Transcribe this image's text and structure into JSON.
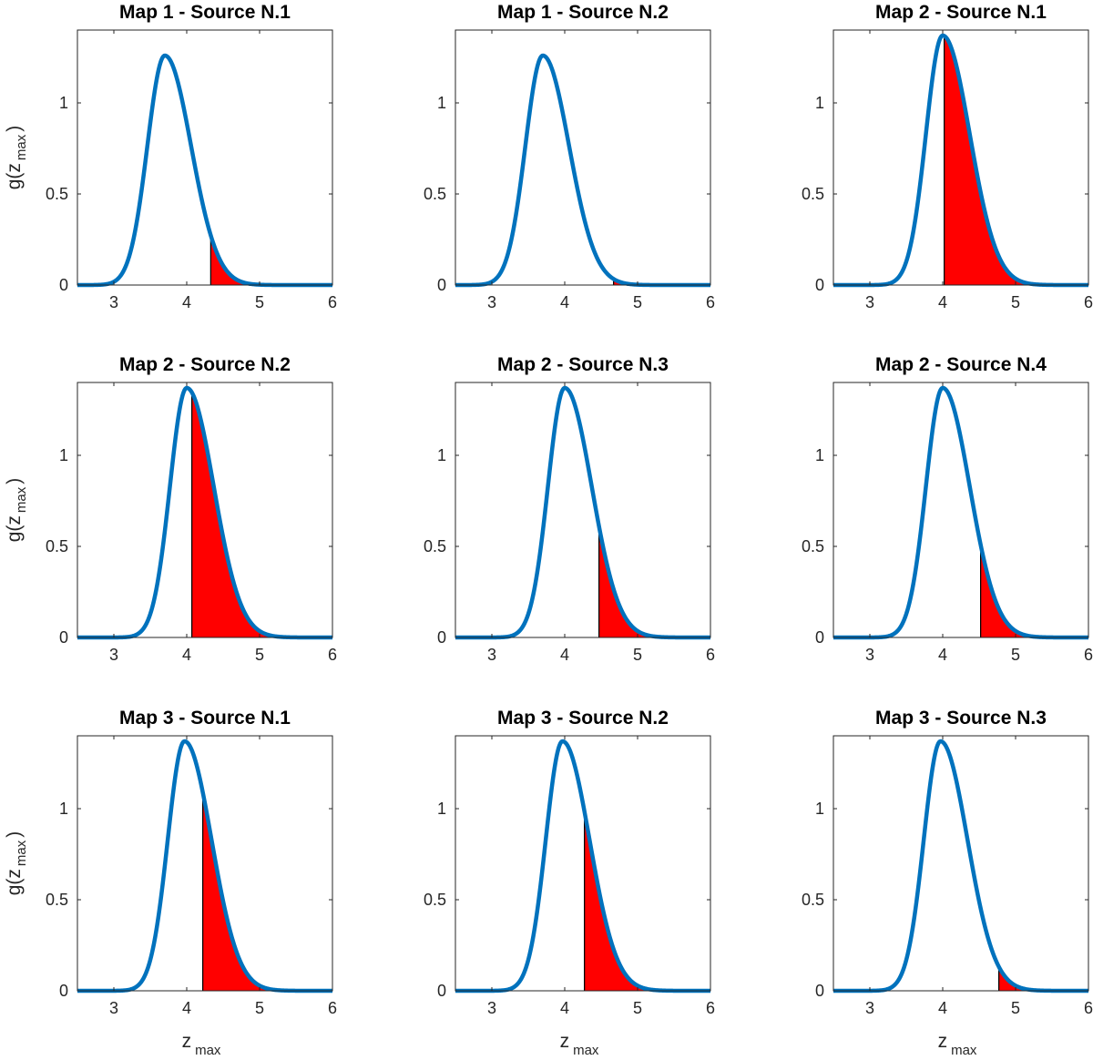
{
  "figure": {
    "colors": {
      "curve": "#0072BD",
      "fill": "#FF0000",
      "axis": "#262626",
      "title": "#000000"
    }
  },
  "chart_data": [
    {
      "type": "area",
      "title": "Map 1 - Source N.1",
      "xlim": [
        2.5,
        6
      ],
      "ylim": [
        0,
        1.4
      ],
      "xticks": [
        3,
        4,
        5,
        6
      ],
      "yticks": [
        0,
        0.5,
        1
      ],
      "xtick_labels": [
        "3",
        "4",
        "5",
        "6"
      ],
      "ytick_labels": [
        "0",
        "0.5",
        "1"
      ],
      "curve": {
        "peak_x": 3.7,
        "peak_y": 1.26,
        "sigma_left": 0.24,
        "sigma_right": 0.36
      },
      "shaded_from": 4.33,
      "ylabel": "g(z max)",
      "ylabel_main": "g(z",
      "ylabel_sub": "max",
      "ylabel_close": ")",
      "xlabel": "",
      "xlabel_main": "",
      "xlabel_sub": ""
    },
    {
      "type": "area",
      "title": "Map 1 - Source N.2",
      "xlim": [
        2.5,
        6
      ],
      "ylim": [
        0,
        1.4
      ],
      "xticks": [
        3,
        4,
        5,
        6
      ],
      "yticks": [
        0,
        0.5,
        1
      ],
      "xtick_labels": [
        "3",
        "4",
        "5",
        "6"
      ],
      "ytick_labels": [
        "0",
        "0.5",
        "1"
      ],
      "curve": {
        "peak_x": 3.7,
        "peak_y": 1.26,
        "sigma_left": 0.24,
        "sigma_right": 0.36
      },
      "shaded_from": 4.67,
      "ylabel": "",
      "ylabel_main": "",
      "ylabel_sub": "",
      "ylabel_close": "",
      "xlabel": "",
      "xlabel_main": "",
      "xlabel_sub": ""
    },
    {
      "type": "area",
      "title": "Map 2 - Source N.1",
      "xlim": [
        2.5,
        6
      ],
      "ylim": [
        0,
        1.4
      ],
      "xticks": [
        3,
        4,
        5,
        6
      ],
      "yticks": [
        0,
        0.5,
        1
      ],
      "xtick_labels": [
        "3",
        "4",
        "5",
        "6"
      ],
      "ytick_labels": [
        "0",
        "0.5",
        "1"
      ],
      "curve": {
        "peak_x": 4.0,
        "peak_y": 1.37,
        "sigma_left": 0.23,
        "sigma_right": 0.37
      },
      "shaded_from": 4.02,
      "ylabel": "",
      "ylabel_main": "",
      "ylabel_sub": "",
      "ylabel_close": "",
      "xlabel": "",
      "xlabel_main": "",
      "xlabel_sub": ""
    },
    {
      "type": "area",
      "title": "Map 2 - Source N.2",
      "xlim": [
        2.5,
        6
      ],
      "ylim": [
        0,
        1.4
      ],
      "xticks": [
        3,
        4,
        5,
        6
      ],
      "yticks": [
        0,
        0.5,
        1
      ],
      "xtick_labels": [
        "3",
        "4",
        "5",
        "6"
      ],
      "ytick_labels": [
        "0",
        "0.5",
        "1"
      ],
      "curve": {
        "peak_x": 4.0,
        "peak_y": 1.37,
        "sigma_left": 0.23,
        "sigma_right": 0.37
      },
      "shaded_from": 4.07,
      "ylabel": "g(z max)",
      "ylabel_main": "g(z",
      "ylabel_sub": "max",
      "ylabel_close": ")",
      "xlabel": "",
      "xlabel_main": "",
      "xlabel_sub": ""
    },
    {
      "type": "area",
      "title": "Map 2 - Source N.3",
      "xlim": [
        2.5,
        6
      ],
      "ylim": [
        0,
        1.4
      ],
      "xticks": [
        3,
        4,
        5,
        6
      ],
      "yticks": [
        0,
        0.5,
        1
      ],
      "xtick_labels": [
        "3",
        "4",
        "5",
        "6"
      ],
      "ytick_labels": [
        "0",
        "0.5",
        "1"
      ],
      "curve": {
        "peak_x": 4.0,
        "peak_y": 1.37,
        "sigma_left": 0.23,
        "sigma_right": 0.37
      },
      "shaded_from": 4.47,
      "ylabel": "",
      "ylabel_main": "",
      "ylabel_sub": "",
      "ylabel_close": "",
      "xlabel": "",
      "xlabel_main": "",
      "xlabel_sub": ""
    },
    {
      "type": "area",
      "title": "Map 2 - Source N.4",
      "xlim": [
        2.5,
        6
      ],
      "ylim": [
        0,
        1.4
      ],
      "xticks": [
        3,
        4,
        5,
        6
      ],
      "yticks": [
        0,
        0.5,
        1
      ],
      "xtick_labels": [
        "3",
        "4",
        "5",
        "6"
      ],
      "ytick_labels": [
        "0",
        "0.5",
        "1"
      ],
      "curve": {
        "peak_x": 4.0,
        "peak_y": 1.37,
        "sigma_left": 0.23,
        "sigma_right": 0.37
      },
      "shaded_from": 4.52,
      "ylabel": "",
      "ylabel_main": "",
      "ylabel_sub": "",
      "ylabel_close": "",
      "xlabel": "",
      "xlabel_main": "",
      "xlabel_sub": ""
    },
    {
      "type": "area",
      "title": "Map 3 - Source N.1",
      "xlim": [
        2.5,
        6
      ],
      "ylim": [
        0,
        1.4
      ],
      "xticks": [
        3,
        4,
        5,
        6
      ],
      "yticks": [
        0,
        0.5,
        1
      ],
      "xtick_labels": [
        "3",
        "4",
        "5",
        "6"
      ],
      "ytick_labels": [
        "0",
        "0.5",
        "1"
      ],
      "curve": {
        "peak_x": 3.97,
        "peak_y": 1.37,
        "sigma_left": 0.23,
        "sigma_right": 0.37
      },
      "shaded_from": 4.22,
      "ylabel": "g(z max)",
      "ylabel_main": "g(z",
      "ylabel_sub": "max",
      "ylabel_close": ")",
      "xlabel": "z max",
      "xlabel_main": "z",
      "xlabel_sub": "max"
    },
    {
      "type": "area",
      "title": "Map 3 - Source N.2",
      "xlim": [
        2.5,
        6
      ],
      "ylim": [
        0,
        1.4
      ],
      "xticks": [
        3,
        4,
        5,
        6
      ],
      "yticks": [
        0,
        0.5,
        1
      ],
      "xtick_labels": [
        "3",
        "4",
        "5",
        "6"
      ],
      "ytick_labels": [
        "0",
        "0.5",
        "1"
      ],
      "curve": {
        "peak_x": 3.97,
        "peak_y": 1.37,
        "sigma_left": 0.23,
        "sigma_right": 0.37
      },
      "shaded_from": 4.27,
      "ylabel": "",
      "ylabel_main": "",
      "ylabel_sub": "",
      "ylabel_close": "",
      "xlabel": "z max",
      "xlabel_main": "z",
      "xlabel_sub": "max"
    },
    {
      "type": "area",
      "title": "Map 3 - Source N.3",
      "xlim": [
        2.5,
        6
      ],
      "ylim": [
        0,
        1.4
      ],
      "xticks": [
        3,
        4,
        5,
        6
      ],
      "yticks": [
        0,
        0.5,
        1
      ],
      "xtick_labels": [
        "3",
        "4",
        "5",
        "6"
      ],
      "ytick_labels": [
        "0",
        "0.5",
        "1"
      ],
      "curve": {
        "peak_x": 3.97,
        "peak_y": 1.37,
        "sigma_left": 0.23,
        "sigma_right": 0.37
      },
      "shaded_from": 4.77,
      "ylabel": "",
      "ylabel_main": "",
      "ylabel_sub": "",
      "ylabel_close": "",
      "xlabel": "z max",
      "xlabel_main": "z",
      "xlabel_sub": "max"
    }
  ]
}
